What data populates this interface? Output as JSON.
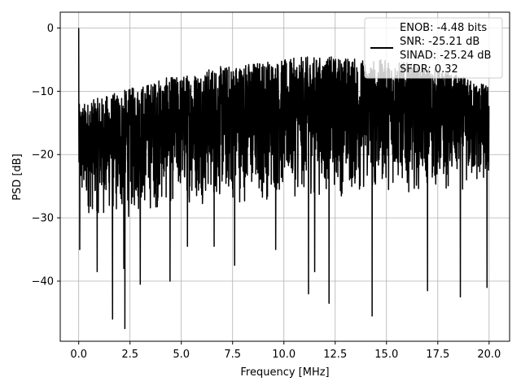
{
  "chart_data": {
    "type": "line",
    "title": "",
    "xlabel": "Frequency [MHz]",
    "ylabel": "PSD [dB]",
    "xlim": [
      -0.9,
      21.0
    ],
    "ylim": [
      -49.5,
      2.5
    ],
    "xticks": [
      0.0,
      2.5,
      5.0,
      7.5,
      10.0,
      12.5,
      15.0,
      17.5,
      20.0
    ],
    "xtick_labels": [
      "0.0",
      "2.5",
      "5.0",
      "7.5",
      "10.0",
      "12.5",
      "15.0",
      "17.5",
      "20.0"
    ],
    "yticks": [
      0,
      -10,
      -20,
      -30,
      -40
    ],
    "ytick_labels": [
      "0",
      "−10",
      "−20",
      "−30",
      "−40"
    ],
    "grid": true,
    "legend_placement": "top-right",
    "series": [
      {
        "name": "",
        "color": "#000000",
        "legend_lines": [
          "ENOB: -4.48 bits",
          "SNR: -25.21 dB",
          "SINAD: -25.24 dB",
          "SFDR: 0.32"
        ],
        "x_range": [
          0.0,
          20.0
        ],
        "peak": {
          "x": 0.0,
          "y": 0.0
        },
        "envelope": {
          "x": [
            0.05,
            1.0,
            2.0,
            3.0,
            4.0,
            5.0,
            6.0,
            7.0,
            8.0,
            9.0,
            10.0,
            11.0,
            12.0,
            13.0,
            14.0,
            15.0,
            16.0,
            17.0,
            18.0,
            19.0,
            20.0
          ],
          "upper": [
            -12.0,
            -11.0,
            -10.0,
            -9.0,
            -8.0,
            -7.5,
            -6.5,
            -6.0,
            -5.5,
            -5.0,
            -5.0,
            -4.5,
            -4.5,
            -4.5,
            -5.0,
            -5.0,
            -5.5,
            -6.0,
            -7.0,
            -8.0,
            -9.0
          ],
          "lower": [
            -30.0,
            -30.0,
            -31.0,
            -30.0,
            -29.0,
            -28.0,
            -28.0,
            -28.0,
            -28.0,
            -28.0,
            -27.0,
            -27.0,
            -27.0,
            -27.0,
            -27.0,
            -26.0,
            -26.0,
            -26.0,
            -26.0,
            -26.0,
            -26.0
          ]
        },
        "deep_dips": [
          {
            "x": 0.05,
            "y": -35.0
          },
          {
            "x": 0.9,
            "y": -38.5
          },
          {
            "x": 1.65,
            "y": -46.0
          },
          {
            "x": 2.25,
            "y": -47.5
          },
          {
            "x": 2.2,
            "y": -38.0
          },
          {
            "x": 3.0,
            "y": -40.5
          },
          {
            "x": 4.45,
            "y": -40.0
          },
          {
            "x": 5.3,
            "y": -34.5
          },
          {
            "x": 6.6,
            "y": -34.5
          },
          {
            "x": 7.6,
            "y": -37.5
          },
          {
            "x": 9.6,
            "y": -35.0
          },
          {
            "x": 11.2,
            "y": -42.0
          },
          {
            "x": 11.5,
            "y": -38.5
          },
          {
            "x": 12.2,
            "y": -43.5
          },
          {
            "x": 14.3,
            "y": -45.5
          },
          {
            "x": 17.0,
            "y": -41.5
          },
          {
            "x": 18.6,
            "y": -42.5
          },
          {
            "x": 19.9,
            "y": -41.0
          }
        ]
      }
    ]
  }
}
